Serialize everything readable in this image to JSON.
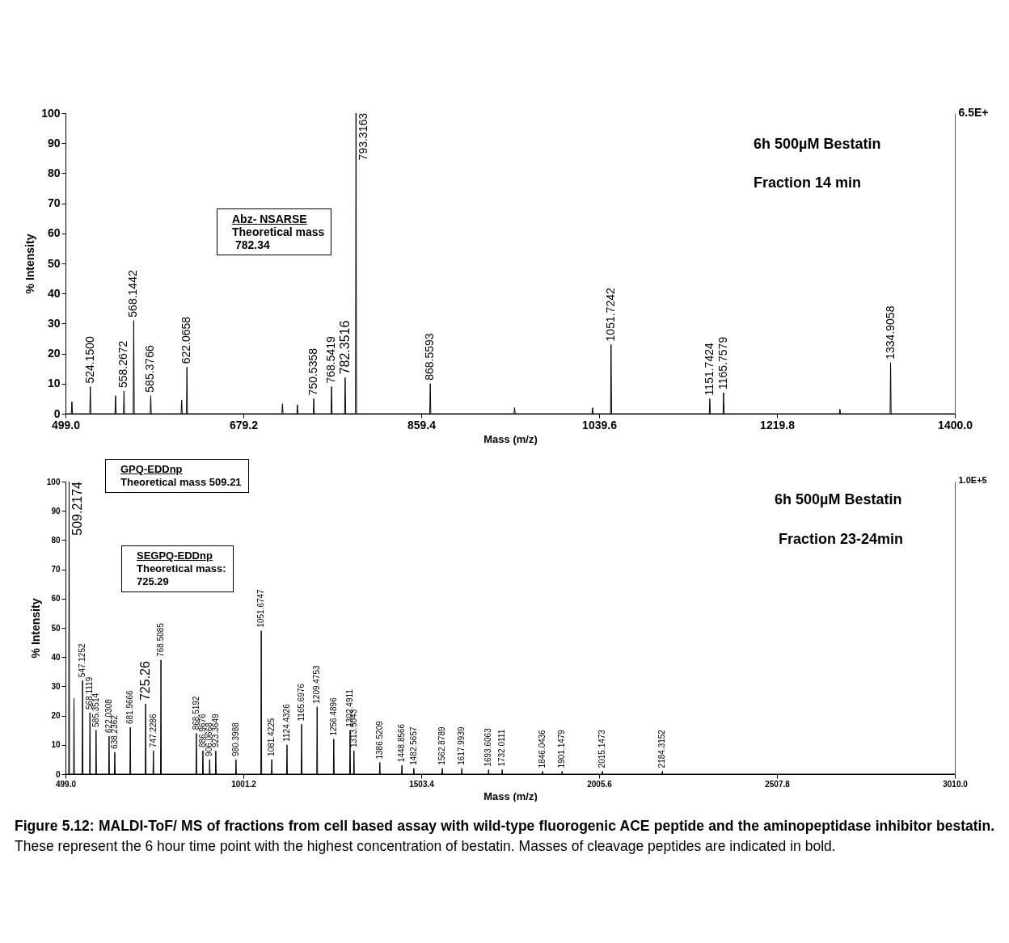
{
  "chart_data": [
    {
      "type": "line",
      "xlabel": "Mass (m/z)",
      "ylabel": "% Intensity",
      "xlim": [
        499,
        1400
      ],
      "ylim": [
        0,
        100
      ],
      "xticks": [
        {
          "value": 499,
          "label": "499.0"
        },
        {
          "value": 679.2,
          "label": "679.2"
        },
        {
          "value": 859.4,
          "label": "859.4"
        },
        {
          "value": 1039.6,
          "label": "1039.6"
        },
        {
          "value": 1219.8,
          "label": "1219.8"
        },
        {
          "value": 1400,
          "label": "1400.0"
        }
      ],
      "yticks": [
        0,
        10,
        20,
        30,
        40,
        50,
        60,
        70,
        80,
        90,
        100
      ],
      "legend": false,
      "marker": "none",
      "line_style": "solid",
      "series": [
        {
          "color": "#000000",
          "x": [
            499,
            504.9,
            505.5,
            506.1,
            523.6,
            524.15,
            524.7,
            549.1,
            549.7,
            550.3,
            557.7,
            558.27,
            558.8,
            567.6,
            568.14,
            568.7,
            584.8,
            585.38,
            585.9,
            616.1,
            616.7,
            617.3,
            621.5,
            622.07,
            622.6,
            718.2,
            718.8,
            719.4,
            733.4,
            734,
            734.6,
            750,
            750.54,
            751.1,
            768,
            768.54,
            769.1,
            781.8,
            782.35,
            782.9,
            792.8,
            793.32,
            793.9,
            868,
            868.56,
            869.1,
            953.4,
            954,
            954.6,
            1032.4,
            1033,
            1033.6,
            1051.2,
            1051.72,
            1052.3,
            1151.2,
            1151.74,
            1152.3,
            1165.2,
            1165.76,
            1166.3,
            1283,
            1283.6,
            1284.2,
            1334.4,
            1334.91,
            1335.5,
            1400
          ],
          "values": [
            0,
            0,
            4,
            0,
            0,
            9,
            0,
            0,
            6,
            0,
            0,
            7.5,
            0,
            0,
            31,
            0,
            0,
            6,
            0,
            0,
            4.5,
            0,
            0,
            15.5,
            0,
            0,
            3.3,
            0,
            0,
            3,
            0,
            0,
            5,
            0,
            0,
            9,
            0,
            0,
            12,
            0,
            0,
            100,
            0,
            0,
            10,
            0,
            0,
            2,
            0,
            0,
            2,
            0,
            0,
            23,
            0,
            0,
            5,
            0,
            0,
            7,
            0,
            0,
            1.5,
            0,
            0,
            17,
            0,
            0
          ]
        }
      ],
      "annotations": [
        "Abz- NSARSE\nTheoretical mass\n 782.34",
        "6h 500µM Bestatin",
        "Fraction 14 min",
        "6.5E+",
        {
          "text": "524.1500",
          "x": 524.15,
          "y": 9
        },
        {
          "text": "558.2672",
          "x": 558.27,
          "y": 7.5
        },
        {
          "text": "568.1442",
          "x": 568.14,
          "y": 31
        },
        {
          "text": "585.3766",
          "x": 585.38,
          "y": 6
        },
        {
          "text": "622.0658",
          "x": 622.07,
          "y": 15.5
        },
        {
          "text": "750.5358",
          "x": 750.54,
          "y": 5
        },
        {
          "text": "768.5419",
          "x": 768.54,
          "y": 9
        },
        {
          "text": "782.3516",
          "x": 782.35,
          "y": 12
        },
        {
          "text": "793.3163",
          "x": 793.32,
          "y": 100
        },
        {
          "text": "868.5593",
          "x": 868.56,
          "y": 10
        },
        {
          "text": "1051.7242",
          "x": 1051.72,
          "y": 23
        },
        {
          "text": "1151.7424",
          "x": 1151.74,
          "y": 5
        },
        {
          "text": "1165.7579",
          "x": 1165.76,
          "y": 7
        },
        {
          "text": "1334.9058",
          "x": 1334.91,
          "y": 17
        }
      ]
    },
    {
      "type": "line",
      "xlabel": "Mass (m/z)",
      "ylabel": "% Intensity",
      "xlim": [
        499,
        3010
      ],
      "ylim": [
        0,
        100
      ],
      "xticks": [
        {
          "value": 499,
          "label": "499.0"
        },
        {
          "value": 1001.2,
          "label": "1001.2"
        },
        {
          "value": 1503.4,
          "label": "1503.4"
        },
        {
          "value": 2005.6,
          "label": "2005.6"
        },
        {
          "value": 2507.8,
          "label": "2507.8"
        },
        {
          "value": 3010,
          "label": "3010.0"
        }
      ],
      "yticks": [
        0,
        10,
        20,
        30,
        40,
        50,
        60,
        70,
        80,
        90,
        100
      ],
      "legend": false,
      "marker": "none",
      "line_style": "solid",
      "series": [
        {
          "color": "#000000",
          "x": [
            499,
            508,
            509.22,
            510.4,
            521.8,
            523,
            524.2,
            545.9,
            547.13,
            548.3,
            566.9,
            568.11,
            569.3,
            584.2,
            585.35,
            586.6,
            620.8,
            622.03,
            623.2,
            637,
            638.24,
            639.4,
            680.8,
            681.97,
            683.2,
            724.1,
            725.26,
            726.5,
            746,
            747.23,
            748.4,
            767.3,
            768.51,
            769.7,
            867.3,
            868.52,
            869.7,
            885.8,
            886.97,
            888.2,
            904.9,
            906.07,
            907.3,
            922.2,
            923.36,
            924.6,
            979.2,
            980.4,
            981.6,
            1050.5,
            1051.67,
            1052.9,
            1080.2,
            1081.42,
            1082.6,
            1123.2,
            1124.43,
            1125.6,
            1164.5,
            1165.7,
            1166.9,
            1208.3,
            1209.48,
            1210.7,
            1255.3,
            1256.49,
            1257.7,
            1301.3,
            1302.49,
            1303.7,
            1312.3,
            1313.5,
            1314.7,
            1385.3,
            1386.52,
            1387.7,
            1447.7,
            1448.86,
            1450.1,
            1481.4,
            1482.57,
            1483.8,
            1561.7,
            1562.88,
            1564.1,
            1616.8,
            1617.99,
            1619.2,
            1692.4,
            1693.61,
            1694.8,
            1730.8,
            1732.01,
            1733.2,
            1844.8,
            1846.04,
            1847.2,
            1899.9,
            1901.15,
            1902.3,
            2013.9,
            2015.15,
            2016.3,
            2183.1,
            2184.32,
            2185.5,
            3010
          ],
          "values": [
            0,
            0,
            100,
            0,
            0,
            26,
            0,
            0,
            32,
            0,
            0,
            21,
            0,
            0,
            15,
            0,
            0,
            13,
            0,
            0,
            7.5,
            0,
            0,
            16,
            0,
            0,
            24,
            0,
            0,
            8,
            0,
            0,
            39,
            0,
            0,
            14,
            0,
            0,
            8,
            0,
            0,
            5,
            0,
            0,
            8,
            0,
            0,
            5,
            0,
            0,
            49,
            0,
            0,
            5,
            0,
            0,
            10,
            0,
            0,
            17,
            0,
            0,
            23,
            0,
            0,
            12,
            0,
            0,
            15,
            0,
            0,
            8,
            0,
            0,
            4,
            0,
            0,
            3,
            0,
            0,
            2,
            0,
            0,
            2,
            0,
            0,
            2,
            0,
            0,
            1.5,
            0,
            0,
            1.5,
            0,
            0,
            1,
            0,
            0,
            1,
            0,
            0,
            1,
            0,
            0,
            1,
            0,
            0
          ]
        }
      ],
      "annotations": [
        "GPQ-EDDnp\nTheoretical mass 509.21",
        "SEGPQ-EDDnp\nTheoretical mass:\n725.29",
        "6h 500µM Bestatin",
        "Fraction 23-24min",
        "1.0E+5",
        "Figure 5.12: MALDI-ToF/ MS of fractions from cell based assay with wild-type fluorogenic ACE peptide and the aminopeptidase inhibitor bestatin.",
        "These represent the 6 hour time point with the highest concentration of bestatin. Masses of cleavage peptides are indicated in bold.",
        {
          "text": "509.2174",
          "x": 509.22,
          "y": 100
        },
        {
          "text": "547.1252",
          "x": 547.13,
          "y": 32
        },
        {
          "text": "568.1119",
          "x": 568.11,
          "y": 21
        },
        {
          "text": "585.3514",
          "x": 585.35,
          "y": 15
        },
        {
          "text": "622.0308",
          "x": 622.03,
          "y": 13
        },
        {
          "text": "638.2362",
          "x": 638.24,
          "y": 7.5
        },
        {
          "text": "681.9666",
          "x": 681.97,
          "y": 16
        },
        {
          "text": "725.26",
          "x": 725.26,
          "y": 24
        },
        {
          "text": "747.2286",
          "x": 747.23,
          "y": 8
        },
        {
          "text": "768.5085",
          "x": 768.51,
          "y": 39
        },
        {
          "text": "868.5192",
          "x": 868.52,
          "y": 14
        },
        {
          "text": "886.9676",
          "x": 886.97,
          "y": 8
        },
        {
          "text": "906.0668",
          "x": 906.07,
          "y": 5
        },
        {
          "text": "923.3649",
          "x": 923.36,
          "y": 8
        },
        {
          "text": "980.3988",
          "x": 980.4,
          "y": 5
        },
        {
          "text": "1051.6747",
          "x": 1051.67,
          "y": 49
        },
        {
          "text": "1081.4225",
          "x": 1081.42,
          "y": 5
        },
        {
          "text": "1124.4326",
          "x": 1124.43,
          "y": 10
        },
        {
          "text": "1165.6976",
          "x": 1165.7,
          "y": 17
        },
        {
          "text": "1209.4753",
          "x": 1209.48,
          "y": 23
        },
        {
          "text": "1256.4896",
          "x": 1256.49,
          "y": 12
        },
        {
          "text": "1302.4911",
          "x": 1302.49,
          "y": 15
        },
        {
          "text": "1313.5043",
          "x": 1313.5,
          "y": 8
        },
        {
          "text": "1386.5209",
          "x": 1386.52,
          "y": 4
        },
        {
          "text": "1448.8566",
          "x": 1448.86,
          "y": 3
        },
        {
          "text": "1482.5657",
          "x": 1482.57,
          "y": 2
        },
        {
          "text": "1562.8789",
          "x": 1562.88,
          "y": 2
        },
        {
          "text": "1617.9939",
          "x": 1617.99,
          "y": 2
        },
        {
          "text": "1693.6063",
          "x": 1693.61,
          "y": 1.5
        },
        {
          "text": "1732.0111",
          "x": 1732.01,
          "y": 1.5
        },
        {
          "text": "1846.0436",
          "x": 1846.04,
          "y": 1
        },
        {
          "text": "1901.1479",
          "x": 1901.15,
          "y": 1
        },
        {
          "text": "2015.1473",
          "x": 2015.15,
          "y": 1
        },
        {
          "text": "2184.3152",
          "x": 2184.32,
          "y": 1
        }
      ]
    }
  ]
}
